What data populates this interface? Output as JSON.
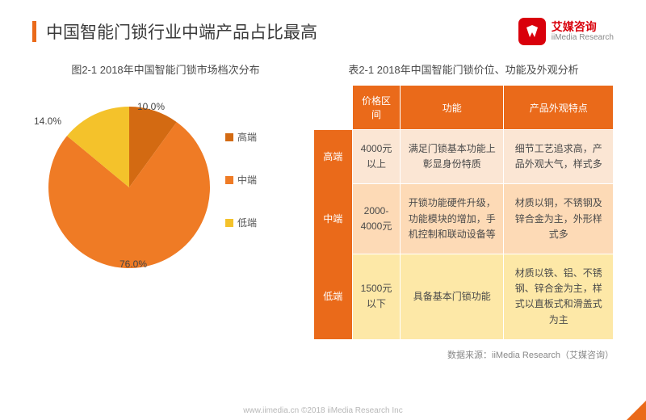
{
  "header": {
    "title": "中国智能门锁行业中端产品占比最高",
    "logo_cn": "艾媒咨询",
    "logo_en": "iiMedia Research"
  },
  "pie": {
    "title": "图2-1 2018年中国智能门锁市场档次分布",
    "type": "pie",
    "slices": [
      {
        "label": "高端",
        "value": 10.0,
        "display": "10.0%",
        "color": "#d36a12"
      },
      {
        "label": "中端",
        "value": 76.0,
        "display": "76.0%",
        "color": "#ef7b25"
      },
      {
        "label": "低端",
        "value": 14.0,
        "display": "14.0%",
        "color": "#f4c22b"
      }
    ],
    "background_color": "#ffffff",
    "label_fontsize": 12,
    "title_fontsize": 13
  },
  "table": {
    "title": "表2-1 2018年中国智能门锁价位、功能及外观分析",
    "columns": [
      "",
      "价格区间",
      "功能",
      "产品外观特点"
    ],
    "rows": [
      {
        "tier": "高端",
        "price": "4000元以上",
        "func": "满足门锁基本功能上彰显身份特质",
        "look": "细节工艺追求高，产品外观大气，样式多",
        "bg": "#fbe6d4"
      },
      {
        "tier": "中端",
        "price": "2000-4000元",
        "func": "开锁功能硬件升级，功能模块的增加，手机控制和联动设备等",
        "look": "材质以铜，不锈钢及锌合金为主，外形样式多",
        "bg": "#fddab6"
      },
      {
        "tier": "低端",
        "price": "1500元以下",
        "func": "具备基本门锁功能",
        "look": "材质以铁、铝、不锈钢、锌合金为主，样式以直板式和滑盖式为主",
        "bg": "#fde8a7"
      }
    ],
    "header_bg": "#ea6a1a",
    "header_color": "#ffffff",
    "row_label_bg": "#ea6a1a",
    "fontsize": 12
  },
  "source": "数据来源：iiMedia Research（艾媒咨询）",
  "footer": "www.iimedia.cn    ©2018 iiMedia Research Inc"
}
